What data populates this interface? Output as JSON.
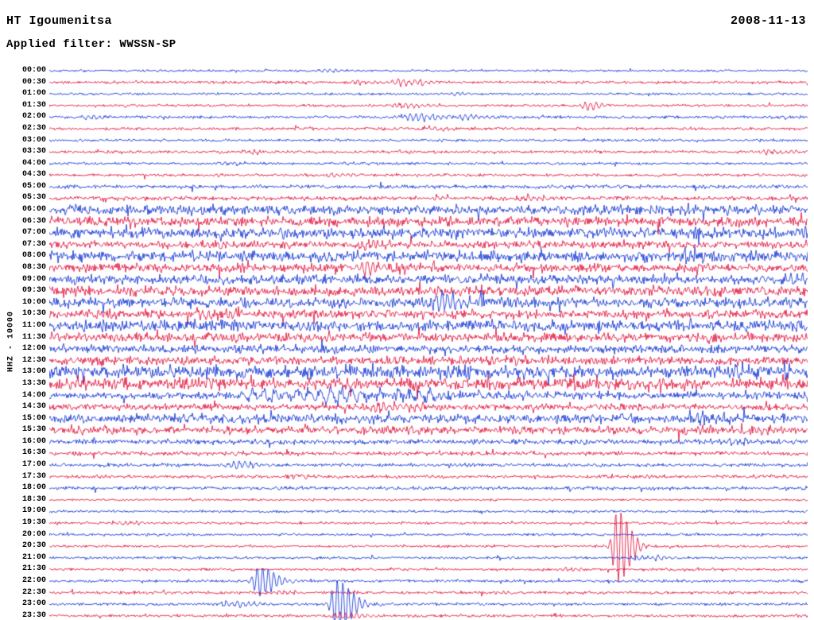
{
  "header": {
    "station": "HT Igoumenitsa",
    "date": "2008-11-13",
    "filter": "Applied filter: WWSSN-SP"
  },
  "axis": {
    "left_label": "HHZ - 10000"
  },
  "chart_data": {
    "type": "line",
    "title": "Helicorder (drum) seismogram, station HT Igoumenitsa, channel HHZ, scale 10000, WWSSN-SP filter, 2008-11-13",
    "minutes_per_line": 30,
    "legend_position": "none",
    "grid": false,
    "colors": {
      "blue": "#0026d0",
      "red": "#e00030"
    },
    "rows": [
      {
        "time": "00:00",
        "color": "blue",
        "noise": 0.8,
        "events": [
          [
            0.365,
            2.0,
            6
          ]
        ]
      },
      {
        "time": "00:30",
        "color": "red",
        "noise": 1.0,
        "events": [
          [
            0.404,
            2.0,
            5
          ],
          [
            0.464,
            3.5,
            10
          ]
        ]
      },
      {
        "time": "01:00",
        "color": "blue",
        "noise": 0.8,
        "events": [
          [
            0.537,
            1.5,
            6
          ]
        ]
      },
      {
        "time": "01:30",
        "color": "red",
        "noise": 0.9,
        "events": [
          [
            0.464,
            2.5,
            8
          ],
          [
            0.708,
            5.0,
            5
          ]
        ]
      },
      {
        "time": "02:00",
        "color": "blue",
        "noise": 1.0,
        "events": [
          [
            0.048,
            2.5,
            6
          ],
          [
            0.48,
            4.5,
            9
          ],
          [
            0.545,
            2.5,
            6
          ]
        ]
      },
      {
        "time": "02:30",
        "color": "red",
        "noise": 1.0,
        "events": [
          [
            0.5,
            1.5,
            8
          ]
        ]
      },
      {
        "time": "03:00",
        "color": "blue",
        "noise": 0.9,
        "events": []
      },
      {
        "time": "03:30",
        "color": "red",
        "noise": 1.0,
        "events": [
          [
            0.26,
            2.0,
            8
          ],
          [
            0.945,
            2.0,
            8
          ]
        ]
      },
      {
        "time": "04:00",
        "color": "blue",
        "noise": 0.9,
        "events": [
          [
            0.23,
            1.5,
            6
          ]
        ]
      },
      {
        "time": "04:30",
        "color": "red",
        "noise": 1.0,
        "events": [
          [
            0.373,
            2.0,
            7
          ]
        ]
      },
      {
        "time": "05:00",
        "color": "blue",
        "noise": 1.3,
        "events": []
      },
      {
        "time": "05:30",
        "color": "red",
        "noise": 1.4,
        "events": [
          [
            0.63,
            1.8,
            8
          ]
        ]
      },
      {
        "time": "06:00",
        "color": "blue",
        "noise": 3.4,
        "events": []
      },
      {
        "time": "06:30",
        "color": "red",
        "noise": 3.4,
        "events": []
      },
      {
        "time": "07:00",
        "color": "blue",
        "noise": 3.8,
        "events": []
      },
      {
        "time": "07:30",
        "color": "red",
        "noise": 2.6,
        "events": [
          [
            0.42,
            3.0,
            10
          ]
        ]
      },
      {
        "time": "08:00",
        "color": "blue",
        "noise": 3.8,
        "events": [
          [
            0.84,
            4.0,
            12
          ]
        ]
      },
      {
        "time": "08:30",
        "color": "red",
        "noise": 3.0,
        "events": [
          [
            0.417,
            9.0,
            6
          ],
          [
            0.455,
            5.0,
            5
          ]
        ]
      },
      {
        "time": "09:00",
        "color": "blue",
        "noise": 3.2,
        "events": [
          [
            0.978,
            3.5,
            8
          ]
        ]
      },
      {
        "time": "09:30",
        "color": "red",
        "noise": 3.5,
        "events": []
      },
      {
        "time": "10:00",
        "color": "blue",
        "noise": 3.5,
        "events": [
          [
            0.515,
            11.0,
            8
          ]
        ]
      },
      {
        "time": "10:30",
        "color": "red",
        "noise": 3.0,
        "events": [
          [
            0.21,
            3.5,
            10
          ],
          [
            0.305,
            2.5,
            8
          ]
        ]
      },
      {
        "time": "11:00",
        "color": "blue",
        "noise": 3.8,
        "events": []
      },
      {
        "time": "11:30",
        "color": "red",
        "noise": 3.2,
        "events": []
      },
      {
        "time": "12:00",
        "color": "blue",
        "noise": 2.8,
        "events": []
      },
      {
        "time": "12:30",
        "color": "red",
        "noise": 3.0,
        "events": [
          [
            0.6,
            2.5,
            10
          ]
        ]
      },
      {
        "time": "13:00",
        "color": "blue",
        "noise": 4.5,
        "events": []
      },
      {
        "time": "13:30",
        "color": "red",
        "noise": 4.2,
        "events": []
      },
      {
        "time": "14:00",
        "color": "blue",
        "noise": 2.5,
        "events": [
          [
            0.3,
            5.0,
            40,
            0.45
          ],
          [
            0.4,
            5.0,
            50,
            0.5
          ],
          [
            0.5,
            3.0,
            40,
            0.5
          ]
        ]
      },
      {
        "time": "14:30",
        "color": "red",
        "noise": 2.2,
        "events": [
          [
            0.43,
            4.0,
            15
          ]
        ]
      },
      {
        "time": "15:00",
        "color": "blue",
        "noise": 3.2,
        "events": [
          [
            0.86,
            3.0,
            10
          ]
        ]
      },
      {
        "time": "15:30",
        "color": "red",
        "noise": 2.8,
        "events": [
          [
            0.93,
            2.5,
            8
          ]
        ]
      },
      {
        "time": "16:00",
        "color": "blue",
        "noise": 1.8,
        "events": [
          [
            0.9,
            2.0,
            8
          ]
        ]
      },
      {
        "time": "16:30",
        "color": "red",
        "noise": 1.5,
        "events": []
      },
      {
        "time": "17:00",
        "color": "blue",
        "noise": 1.2,
        "events": [
          [
            0.244,
            4.5,
            7
          ]
        ]
      },
      {
        "time": "17:30",
        "color": "red",
        "noise": 1.2,
        "events": [
          [
            0.322,
            2.0,
            6
          ]
        ]
      },
      {
        "time": "18:00",
        "color": "blue",
        "noise": 1.2,
        "events": []
      },
      {
        "time": "18:30",
        "color": "red",
        "noise": 0.8,
        "events": []
      },
      {
        "time": "19:00",
        "color": "blue",
        "noise": 0.9,
        "events": []
      },
      {
        "time": "19:30",
        "color": "red",
        "noise": 0.9,
        "events": [
          [
            0.098,
            2.2,
            7
          ]
        ]
      },
      {
        "time": "20:00",
        "color": "blue",
        "noise": 0.9,
        "events": []
      },
      {
        "time": "20:30",
        "color": "red",
        "noise": 0.9,
        "events": [
          [
            0.749,
            45.0,
            5
          ]
        ]
      },
      {
        "time": "21:00",
        "color": "blue",
        "noise": 0.9,
        "events": [
          [
            0.772,
            2.5,
            6
          ],
          [
            0.8,
            2.0,
            5
          ]
        ]
      },
      {
        "time": "21:30",
        "color": "red",
        "noise": 0.9,
        "events": [
          [
            0.68,
            2.0,
            6
          ]
        ]
      },
      {
        "time": "22:00",
        "color": "blue",
        "noise": 1.0,
        "events": [
          [
            0.276,
            18.0,
            6
          ]
        ]
      },
      {
        "time": "22:30",
        "color": "red",
        "noise": 1.0,
        "events": [
          [
            0.3,
            2.0,
            6
          ]
        ]
      },
      {
        "time": "23:00",
        "color": "blue",
        "noise": 1.0,
        "events": [
          [
            0.379,
            30.0,
            6
          ],
          [
            0.24,
            3.5,
            9
          ]
        ]
      },
      {
        "time": "23:30",
        "color": "red",
        "noise": 1.0,
        "events": [
          [
            0.385,
            4.0,
            8
          ]
        ]
      }
    ]
  }
}
